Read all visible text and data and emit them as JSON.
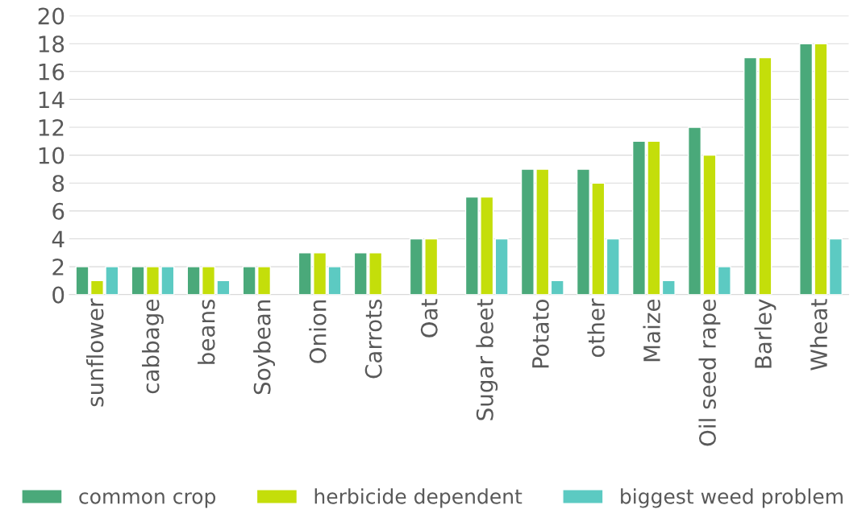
{
  "chart_data": {
    "type": "bar",
    "categories": [
      "sunflower",
      "cabbage",
      "beans",
      "Soybean",
      "Onion",
      "Carrots",
      "Oat",
      "Sugar beet",
      "Potato",
      "other",
      "Maize",
      "Oil seed rape",
      "Barley",
      "Wheat"
    ],
    "series": [
      {
        "name": "common crop",
        "color": "#4aa97a",
        "values": [
          2,
          2,
          2,
          2,
          3,
          3,
          4,
          7,
          9,
          9,
          11,
          12,
          17,
          18
        ]
      },
      {
        "name": "herbicide dependent",
        "color": "#c4de0a",
        "values": [
          1,
          2,
          2,
          2,
          3,
          3,
          4,
          7,
          9,
          8,
          11,
          10,
          17,
          18
        ]
      },
      {
        "name": "biggest weed problem",
        "color": "#5ccac2",
        "values": [
          2,
          2,
          1,
          null,
          2,
          null,
          null,
          4,
          1,
          4,
          1,
          2,
          null,
          4
        ]
      }
    ],
    "ylim": [
      0,
      20
    ],
    "yticks": [
      0,
      2,
      4,
      6,
      8,
      10,
      12,
      14,
      16,
      18,
      20
    ],
    "grid": "y",
    "legend": "bottom"
  }
}
